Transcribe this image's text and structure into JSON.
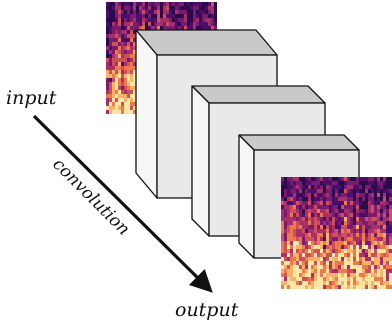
{
  "labels": {
    "input": "input",
    "convolution": "convolution",
    "output": "output"
  },
  "colors": {
    "block_front": "#e9e9e9",
    "block_top": "#c9c9c9",
    "block_side": "#f6f6f6",
    "block_edge": "#111111",
    "arrow": "#111111"
  },
  "spectrogram_palette": [
    "#2a0a4a",
    "#4b0f6b",
    "#7a1c6e",
    "#a8306a",
    "#d0505a",
    "#ec7a4a",
    "#f7b26a",
    "#fbe6a6"
  ]
}
